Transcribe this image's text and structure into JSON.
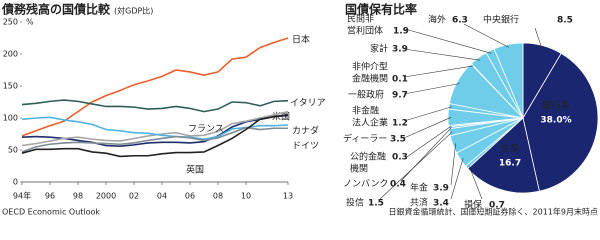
{
  "chart_data": [
    {
      "type": "line",
      "title": "債務残高の国債比較",
      "subtitle": "(対GDP比)",
      "ylabel": "%",
      "source": "OECD Economic Outlook",
      "x": [
        1994,
        1995,
        1996,
        1997,
        1998,
        1999,
        2000,
        2001,
        2002,
        2003,
        2004,
        2005,
        2006,
        2007,
        2008,
        2009,
        2010,
        2011,
        2012,
        2013
      ],
      "xlim": [
        1994,
        2013
      ],
      "xticks": [
        {
          "value": 1994,
          "label": "94年"
        },
        {
          "value": 1996,
          "label": "96"
        },
        {
          "value": 1998,
          "label": "98"
        },
        2000,
        {
          "value": 2002,
          "label": "02"
        },
        {
          "value": 2004,
          "label": "04"
        },
        {
          "value": 2006,
          "label": "06"
        },
        {
          "value": 2008,
          "label": "08"
        },
        {
          "value": 2010,
          "label": "10"
        },
        {
          "value": 2013,
          "label": "13"
        }
      ],
      "ylim": [
        0,
        250
      ],
      "yticks": [
        0,
        50,
        100,
        150,
        200,
        250
      ],
      "series": [
        {
          "name": "日本",
          "color": "#e8602c",
          "values": [
            72,
            80,
            88,
            95,
            110,
            125,
            135,
            143,
            152,
            158,
            165,
            175,
            172,
            167,
            172,
            192,
            195,
            210,
            218,
            225
          ]
        },
        {
          "name": "イタリア",
          "color": "#2f5f58",
          "values": [
            121,
            123,
            126,
            128,
            126,
            122,
            118,
            118,
            117,
            114,
            115,
            118,
            115,
            110,
            114,
            125,
            124,
            119,
            126,
            127
          ]
        },
        {
          "name": "米国",
          "color": "#1d2f6b",
          "values": [
            70,
            71,
            70,
            68,
            65,
            62,
            57,
            56,
            58,
            61,
            62,
            62,
            61,
            63,
            72,
            86,
            94,
            98,
            102,
            104
          ]
        },
        {
          "name": "フランス",
          "color": "#a6a6a6",
          "values": [
            57,
            60,
            64,
            68,
            70,
            67,
            65,
            64,
            68,
            72,
            75,
            77,
            72,
            73,
            79,
            91,
            95,
            100,
            105,
            110
          ]
        },
        {
          "name": "カナダ",
          "color": "#4fb3e3",
          "values": [
            98,
            100,
            101,
            97,
            94,
            90,
            82,
            80,
            77,
            76,
            73,
            71,
            70,
            67,
            71,
            83,
            85,
            88,
            88,
            89
          ]
        },
        {
          "name": "ドイツ",
          "color": "#7d8c93",
          "values": [
            47,
            55,
            59,
            61,
            62,
            61,
            60,
            59,
            61,
            65,
            68,
            71,
            69,
            65,
            69,
            77,
            85,
            82,
            84,
            84
          ]
        },
        {
          "name": "英国",
          "color": "#222222",
          "values": [
            45,
            51,
            51,
            52,
            52,
            47,
            45,
            40,
            41,
            41,
            44,
            46,
            46,
            47,
            57,
            68,
            82,
            98,
            102,
            105
          ]
        }
      ]
    },
    {
      "type": "pie",
      "title": "国債保有比率",
      "source": "日銀資金循環統計、国庫短期証券除く、2011年9月末時点",
      "categories": [
        "中央銀行",
        "銀行等",
        "生保",
        "損保",
        "共済",
        "年金",
        "投信",
        "ノンバンク",
        [
          "公的金融",
          "機関"
        ],
        "ディーラー",
        [
          "非金融",
          "法人企業"
        ],
        "一般政府",
        [
          "非仲介型",
          "金融機関"
        ],
        "家計",
        [
          "民間非",
          "営利団体"
        ],
        "海外"
      ],
      "values": [
        8.5,
        38.0,
        16.7,
        0.7,
        3.4,
        3.9,
        1.5,
        0.4,
        0.3,
        3.5,
        1.2,
        9.7,
        0.1,
        3.9,
        1.9,
        6.3
      ],
      "value_labels": [
        "8.5",
        "38.0%",
        "16.7",
        "0.7",
        "3.4",
        "3.9",
        "1.5",
        "0.4",
        "0.3",
        "3.5",
        "1.2",
        "9.7",
        "0.1",
        "3.9",
        "1.9",
        "6.3"
      ],
      "colors": [
        "#1b2670",
        "#1b2670",
        "#1b2670",
        "#6fcde9",
        "#6fcde9",
        "#6fcde9",
        "#6fcde9",
        "#6fcde9",
        "#6fcde9",
        "#6fcde9",
        "#6fcde9",
        "#6fcde9",
        "#6fcde9",
        "#6fcde9",
        "#6fcde9",
        "#6fcde9"
      ]
    }
  ]
}
